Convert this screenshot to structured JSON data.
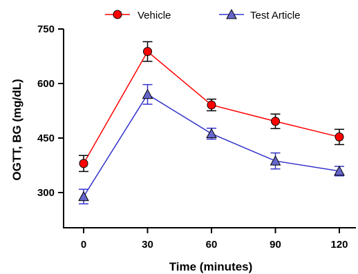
{
  "chart_data": {
    "type": "line",
    "x": [
      0,
      30,
      60,
      90,
      120
    ],
    "xlabel": "Time (minutes)",
    "ylabel": "OGTT, BG (mg/dL)",
    "xticks": [
      "0",
      "30",
      "60",
      "90",
      "120"
    ],
    "yticks": [
      "300",
      "450",
      "600",
      "750"
    ],
    "ylim": [
      225,
      750
    ],
    "legend_position": "top",
    "series": [
      {
        "name": "Vehicle",
        "color": "#ff0000",
        "marker": "circle",
        "values": [
          380,
          688,
          541,
          496,
          453
        ],
        "errors": [
          22,
          27,
          16,
          20,
          21
        ]
      },
      {
        "name": "Test Article",
        "color": "#3333cc",
        "marker": "triangle",
        "values": [
          289,
          570,
          462,
          387,
          359
        ],
        "errors": [
          20,
          27,
          15,
          22,
          13
        ]
      }
    ]
  }
}
